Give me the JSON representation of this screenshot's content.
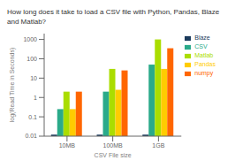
{
  "chart_data": {
    "type": "bar",
    "title": "How long does it take to load a CSV file with Python, Pandas, Blaze and Matlab?",
    "xlabel": "CSV File size",
    "ylabel": "log(Read Time in Seconds)",
    "categories": [
      "10MB",
      "100MB",
      "1GB"
    ],
    "series": [
      {
        "name": "Blaze",
        "color": "#1a3a5c",
        "values": [
          0.012,
          0.012,
          0.012
        ]
      },
      {
        "name": "CSV",
        "color": "#2aaa8a",
        "values": [
          0.25,
          2.0,
          50.0
        ]
      },
      {
        "name": "Matlab",
        "color": "#aadd00",
        "values": [
          2.0,
          30.0,
          1000.0
        ]
      },
      {
        "name": "Pandas",
        "color": "#ffcc00",
        "values": [
          0.25,
          2.5,
          30.0
        ]
      },
      {
        "name": "numpy",
        "color": "#ff6600",
        "values": [
          2.0,
          25.0,
          350.0
        ]
      }
    ],
    "log": "y",
    "ylim": [
      0.01,
      2000
    ],
    "yticks": [
      0.01,
      0.1,
      1,
      10,
      100,
      1000
    ],
    "grid": false,
    "legend": "right"
  }
}
